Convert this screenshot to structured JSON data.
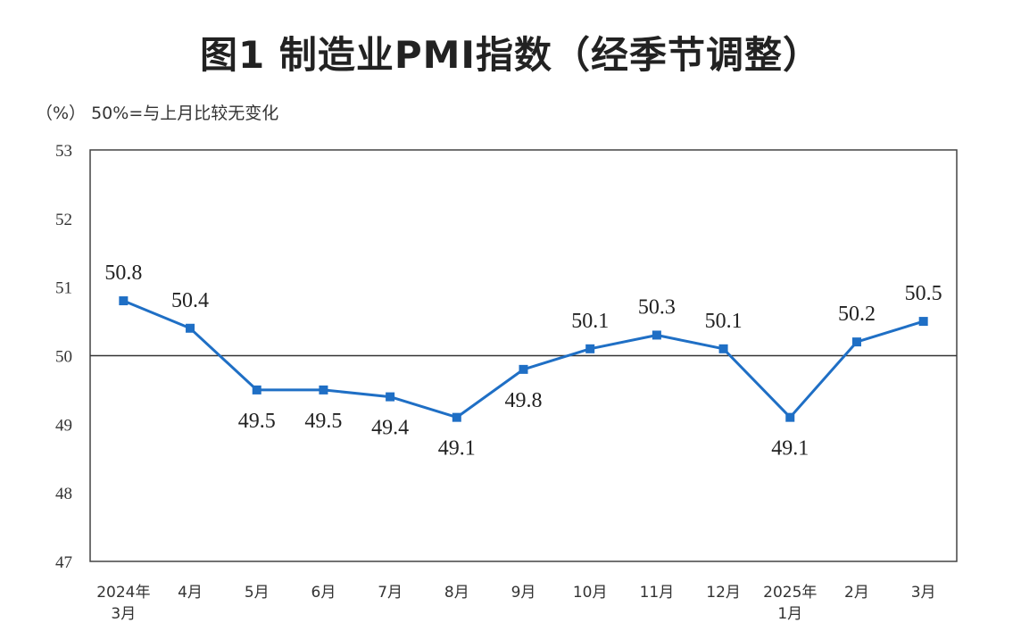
{
  "chart_data": {
    "type": "line",
    "title": "图1  制造业PMI指数（经季节调整）",
    "note": "（%） 50%=与上月比较无变化",
    "categories": [
      [
        "2024年",
        "3月"
      ],
      [
        "4月"
      ],
      [
        "5月"
      ],
      [
        "6月"
      ],
      [
        "7月"
      ],
      [
        "8月"
      ],
      [
        "9月"
      ],
      [
        "10月"
      ],
      [
        "11月"
      ],
      [
        "12月"
      ],
      [
        "2025年",
        "1月"
      ],
      [
        "2月"
      ],
      [
        "3月"
      ]
    ],
    "series": [
      {
        "values": [
          50.8,
          50.4,
          49.5,
          49.5,
          49.4,
          49.1,
          49.8,
          50.1,
          50.3,
          50.1,
          49.1,
          50.2,
          50.5
        ]
      }
    ],
    "data_labels": [
      "50.8",
      "50.4",
      "49.5",
      "49.5",
      "49.4",
      "49.1",
      "49.8",
      "50.1",
      "50.3",
      "50.1",
      "49.1",
      "50.2",
      "50.5"
    ],
    "label_positions": [
      "above",
      "above",
      "below",
      "below",
      "below",
      "below",
      "below",
      "above",
      "above",
      "above",
      "below",
      "above",
      "above"
    ],
    "ylim": [
      47,
      53
    ],
    "yticks": [
      47,
      48,
      49,
      50,
      51,
      52,
      53
    ],
    "reference_line": 50,
    "line_color": "#1f6fc5",
    "grid": false
  }
}
